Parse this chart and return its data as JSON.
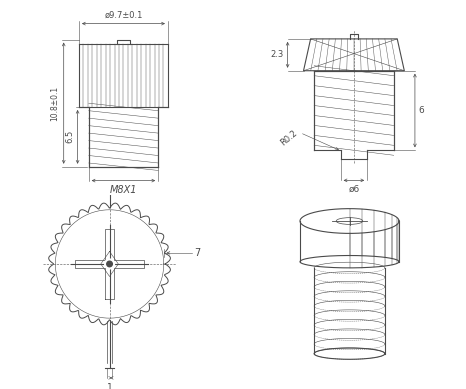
{
  "bg_color": "#ffffff",
  "line_color": "#4a4a4a",
  "fig_width": 4.66,
  "fig_height": 3.89,
  "annotations": {
    "top_left_diameter": "ø9.7±0.1",
    "top_left_height_total": "10.8±0.1",
    "top_left_height_thread": "6.5",
    "top_left_thread": "M8X1",
    "top_right_dim1": "2.3",
    "top_right_radius": "R0.2",
    "top_right_diameter": "ø6",
    "top_right_height": "6",
    "bottom_left_dim": "7",
    "bottom_left_dim2": "1"
  }
}
